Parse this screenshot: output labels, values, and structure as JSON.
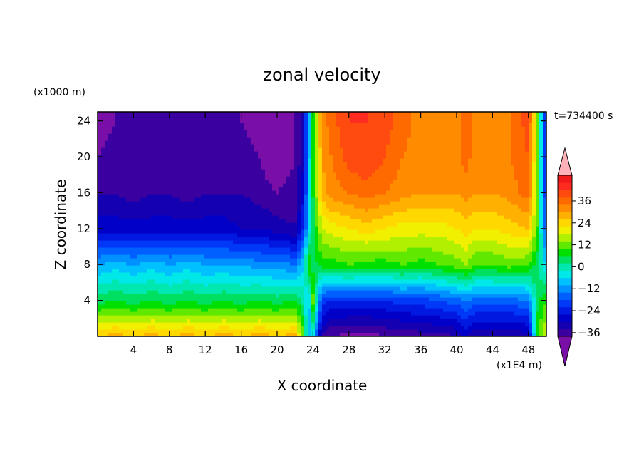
{
  "chart_data": {
    "type": "heatmap",
    "title": "zonal velocity",
    "time_label": "t=734400 s",
    "xlabel": "X coordinate",
    "ylabel": "Z coordinate",
    "x_unit": "(x1E4 m)",
    "y_unit": "(x1000 m)",
    "xlim": [
      0,
      50
    ],
    "ylim": [
      0,
      25
    ],
    "x_ticks": [
      4,
      8,
      12,
      16,
      20,
      24,
      28,
      32,
      36,
      40,
      44,
      48
    ],
    "y_ticks": [
      4,
      8,
      12,
      16,
      20,
      24
    ],
    "colorbar": {
      "min": -42,
      "max": 42,
      "step": 4,
      "labels": [
        36,
        24,
        12,
        0,
        -12,
        -24,
        -36
      ],
      "colors": [
        "#7a0fa8",
        "#3a00a0",
        "#1400b0",
        "#0000c8",
        "#0018e0",
        "#0038f8",
        "#0060ff",
        "#0090ff",
        "#00c0ff",
        "#00e8e8",
        "#00e8b0",
        "#00e060",
        "#00e000",
        "#60e800",
        "#b0f000",
        "#f0f000",
        "#ffd800",
        "#ffb000",
        "#ff8c00",
        "#ff6a00",
        "#ff4a10",
        "#ff2a20",
        "#f01818",
        "#ffb0b8"
      ]
    },
    "profile_description": "Sampled velocity values (data units) on a coarse grid; x in 1E4 m, z in 1000 m",
    "x": [
      0,
      2,
      4,
      6,
      8,
      10,
      12,
      14,
      16,
      18,
      20,
      22,
      23,
      23.5,
      24,
      25,
      26,
      28,
      30,
      32,
      34,
      36,
      38,
      40,
      41,
      42,
      44,
      46,
      48,
      49,
      50
    ],
    "z": [
      0,
      1,
      2,
      3,
      4,
      5,
      6,
      7,
      8,
      9,
      10,
      11,
      12,
      13,
      14,
      16,
      18,
      20,
      22,
      24,
      25
    ],
    "sample_rows": {
      "z_0": [
        26,
        28,
        26,
        28,
        26,
        28,
        26,
        28,
        26,
        28,
        26,
        28,
        10,
        -10,
        -5,
        -34,
        -38,
        -40,
        -40,
        -38,
        -38,
        -36,
        -36,
        -34,
        -28,
        -34,
        -34,
        -34,
        -32,
        10,
        20
      ],
      "z_4": [
        4,
        6,
        4,
        6,
        4,
        6,
        4,
        6,
        4,
        6,
        4,
        6,
        0,
        -10,
        12,
        -20,
        -22,
        -22,
        -22,
        -22,
        -20,
        -20,
        -18,
        -16,
        -14,
        -16,
        -16,
        -16,
        -14,
        4,
        10
      ],
      "z_8": [
        -10,
        -8,
        -10,
        -8,
        -10,
        -8,
        -10,
        -10,
        -10,
        -12,
        -12,
        -14,
        -6,
        12,
        4,
        8,
        8,
        10,
        8,
        8,
        10,
        8,
        10,
        12,
        14,
        10,
        10,
        12,
        10,
        4,
        -8
      ],
      "z_12": [
        -28,
        -28,
        -28,
        -28,
        -28,
        -28,
        -28,
        -28,
        -30,
        -30,
        -32,
        -34,
        -20,
        -6,
        4,
        18,
        20,
        22,
        24,
        22,
        20,
        20,
        20,
        22,
        24,
        22,
        22,
        24,
        26,
        10,
        -20
      ],
      "z_16": [
        -34,
        -34,
        -36,
        -34,
        -34,
        -36,
        -34,
        -34,
        -34,
        -36,
        -38,
        -36,
        -26,
        -8,
        6,
        28,
        32,
        34,
        36,
        34,
        32,
        30,
        30,
        30,
        32,
        30,
        30,
        32,
        36,
        12,
        -26
      ],
      "z_20": [
        -38,
        -36,
        -38,
        -36,
        -36,
        -38,
        -38,
        -36,
        -36,
        -38,
        -42,
        -38,
        -30,
        -10,
        8,
        30,
        34,
        40,
        42,
        38,
        34,
        32,
        30,
        32,
        36,
        32,
        32,
        34,
        38,
        12,
        -28
      ],
      "z_24": [
        -40,
        -38,
        -38,
        -36,
        -38,
        -38,
        -36,
        -36,
        -38,
        -40,
        -42,
        -38,
        -30,
        -10,
        8,
        32,
        36,
        42,
        42,
        40,
        36,
        32,
        30,
        32,
        38,
        32,
        32,
        34,
        40,
        12,
        -30
      ]
    }
  }
}
